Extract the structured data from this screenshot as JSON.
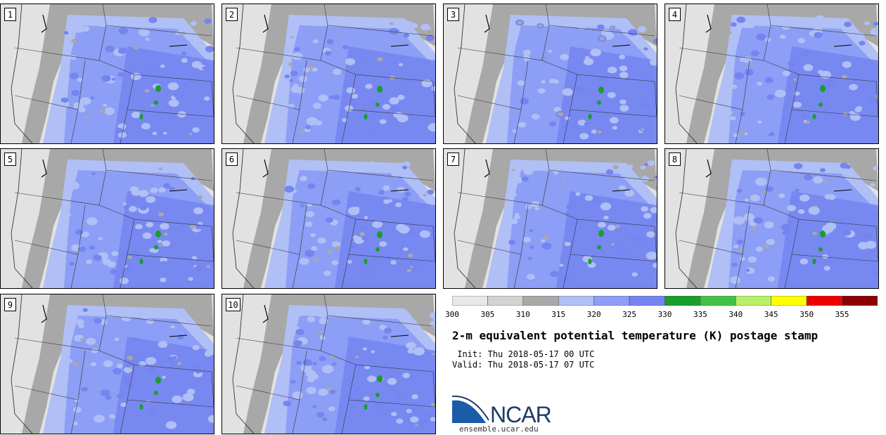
{
  "panels": [
    {
      "label": "1"
    },
    {
      "label": "2"
    },
    {
      "label": "3"
    },
    {
      "label": "4"
    },
    {
      "label": "5"
    },
    {
      "label": "6"
    },
    {
      "label": "7"
    },
    {
      "label": "8"
    },
    {
      "label": "9"
    },
    {
      "label": "10"
    }
  ],
  "colorbar": {
    "ticks": [
      "300",
      "305",
      "310",
      "315",
      "320",
      "325",
      "330",
      "335",
      "340",
      "345",
      "350",
      "355"
    ],
    "colors": [
      "#e8e8e8",
      "#d3d3d3",
      "#a9a9a9",
      "#b0bff5",
      "#8c9ef5",
      "#7484f0",
      "#1a9e2a",
      "#44c046",
      "#b8f068",
      "#ffff00",
      "#ee0000",
      "#8b0000"
    ]
  },
  "title": "2-m equivalent potential temperature (K) postage stamp",
  "init_line": " Init: Thu 2018-05-17 00 UTC",
  "valid_line": "Valid: Thu 2018-05-17 07 UTC",
  "logo": {
    "text": "NCAR",
    "url": "ensemble.ucar.edu",
    "colors": {
      "blue": "#1a5ca8",
      "navy": "#1d3b6b"
    }
  },
  "map_colors": {
    "ocean_light": "#e2e2e2",
    "coast_gray": "#a8a8a8",
    "light_blue": "#b0bff5",
    "mid_blue": "#8c9ef5",
    "deep_blue": "#7484f0",
    "green": "#1a9e2a"
  }
}
